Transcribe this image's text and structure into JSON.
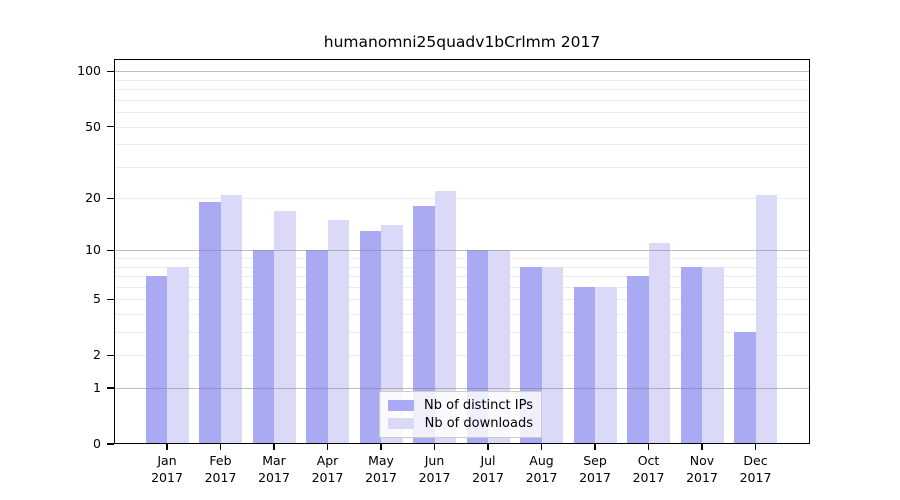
{
  "chart_data": {
    "type": "bar",
    "title": "humanomni25quadv1bCrlmm 2017",
    "xlabel": "",
    "ylabel": "",
    "categories": [
      {
        "month": "Jan",
        "year": "2017"
      },
      {
        "month": "Feb",
        "year": "2017"
      },
      {
        "month": "Mar",
        "year": "2017"
      },
      {
        "month": "Apr",
        "year": "2017"
      },
      {
        "month": "May",
        "year": "2017"
      },
      {
        "month": "Jun",
        "year": "2017"
      },
      {
        "month": "Jul",
        "year": "2017"
      },
      {
        "month": "Aug",
        "year": "2017"
      },
      {
        "month": "Sep",
        "year": "2017"
      },
      {
        "month": "Oct",
        "year": "2017"
      },
      {
        "month": "Nov",
        "year": "2017"
      },
      {
        "month": "Dec",
        "year": "2017"
      }
    ],
    "series": [
      {
        "name": "Nb of distinct IPs",
        "color": "#a9a9f4",
        "values": [
          7,
          19,
          10,
          10,
          13,
          18,
          10,
          8,
          6,
          7,
          8,
          3
        ]
      },
      {
        "name": "Nb of downloads",
        "color": "#dadaf8",
        "values": [
          8,
          21,
          17,
          15,
          14,
          22,
          10,
          8,
          6,
          11,
          8,
          21
        ]
      }
    ],
    "y_axis": {
      "scale": "log1p",
      "ylim": [
        0,
        117
      ],
      "labeled_ticks": [
        0,
        1,
        2,
        5,
        10,
        20,
        50,
        100
      ],
      "decade_gridlines": [
        1,
        10,
        100
      ],
      "minor_gridlines": [
        2,
        3,
        4,
        5,
        6,
        7,
        8,
        9,
        20,
        30,
        40,
        50,
        60,
        70,
        80,
        90
      ]
    },
    "grid": true,
    "legend_position": "inside-bottom-center"
  },
  "colors": {
    "minor_grid": "#ededed",
    "decade_grid_overlay": "rgba(128,128,128,0.5)",
    "axis_frame": "#000000",
    "background": "#ffffff"
  }
}
